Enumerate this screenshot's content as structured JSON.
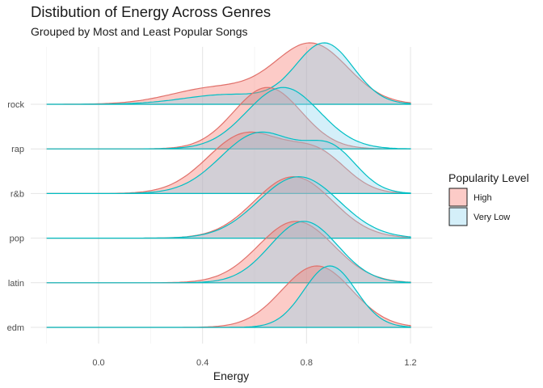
{
  "chart_data": {
    "type": "ridgeline",
    "title": "Distibution of Energy Across Genres",
    "subtitle": "Grouped by Most and Least Popular Songs",
    "xlabel": "Energy",
    "ylabel": "",
    "xlim": [
      -0.2,
      1.22
    ],
    "x_ticks": [
      0.0,
      0.4,
      0.8,
      1.2
    ],
    "x_tick_labels": [
      "0.0",
      "0.4",
      "0.8",
      "1.2"
    ],
    "categories": [
      "edm",
      "latin",
      "pop",
      "r&b",
      "rap",
      "rock"
    ],
    "legend": {
      "title": "Popularity Level",
      "position": "right",
      "items": [
        {
          "label": "High",
          "fill": "#F8766D",
          "stroke": "#E0706A"
        },
        {
          "label": "Very Low",
          "fill": "#8ED6EE",
          "stroke": "#00BFC4"
        }
      ]
    },
    "grid": true,
    "series": [
      {
        "name": "High",
        "genres": {
          "edm": {
            "components": [
              {
                "mu": 0.84,
                "sd": 0.135,
                "w": 1.0
              }
            ]
          },
          "latin": {
            "components": [
              {
                "mu": 0.76,
                "sd": 0.145,
                "w": 1.0
              }
            ]
          },
          "pop": {
            "components": [
              {
                "mu": 0.75,
                "sd": 0.15,
                "w": 1.0
              }
            ]
          },
          "r&b": {
            "components": [
              {
                "mu": 0.57,
                "sd": 0.15,
                "w": 0.7
              },
              {
                "mu": 0.85,
                "sd": 0.11,
                "w": 0.3
              }
            ]
          },
          "rap": {
            "components": [
              {
                "mu": 0.65,
                "sd": 0.13,
                "w": 1.0
              }
            ]
          },
          "rock": {
            "components": [
              {
                "mu": 0.82,
                "sd": 0.14,
                "w": 0.75
              },
              {
                "mu": 0.45,
                "sd": 0.17,
                "w": 0.25
              }
            ]
          }
        }
      },
      {
        "name": "Very Low",
        "genres": {
          "edm": {
            "components": [
              {
                "mu": 0.89,
                "sd": 0.1,
                "w": 1.0
              }
            ]
          },
          "latin": {
            "components": [
              {
                "mu": 0.79,
                "sd": 0.13,
                "w": 1.0
              }
            ]
          },
          "pop": {
            "components": [
              {
                "mu": 0.77,
                "sd": 0.155,
                "w": 1.0
              }
            ]
          },
          "r&b": {
            "components": [
              {
                "mu": 0.62,
                "sd": 0.15,
                "w": 0.7
              },
              {
                "mu": 0.9,
                "sd": 0.1,
                "w": 0.3
              }
            ]
          },
          "rap": {
            "components": [
              {
                "mu": 0.71,
                "sd": 0.14,
                "w": 1.0
              }
            ]
          },
          "rock": {
            "components": [
              {
                "mu": 0.87,
                "sd": 0.11,
                "w": 0.8
              },
              {
                "mu": 0.5,
                "sd": 0.17,
                "w": 0.2
              }
            ]
          }
        }
      }
    ]
  }
}
